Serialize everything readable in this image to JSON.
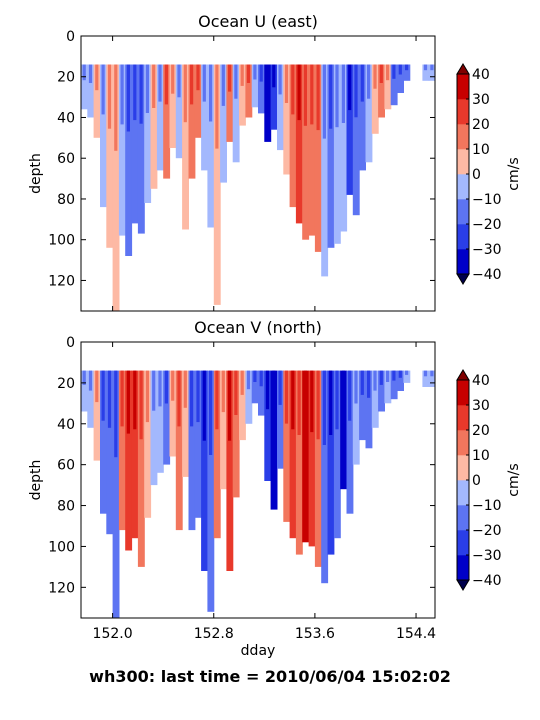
{
  "figure": {
    "suptitle": "wh300: last time = 2010/06/04 15:02:02"
  },
  "chart_data": [
    {
      "type": "heatmap",
      "title": "Ocean U (east)",
      "xlabel": "",
      "ylabel": "depth",
      "xlim": [
        151.75,
        154.55
      ],
      "ylim": [
        135,
        0
      ],
      "xticks": [
        152.0,
        152.8,
        153.6,
        154.4
      ],
      "xtick_labels": [
        "152.0",
        "152.8",
        "153.6",
        "154.4"
      ],
      "show_xtick_labels": false,
      "yticks": [
        0,
        20,
        40,
        60,
        80,
        100,
        120
      ],
      "colorbar": {
        "label": "cm/s",
        "levels": [
          -40,
          -30,
          -20,
          -10,
          0,
          10,
          20,
          30,
          40
        ],
        "tick_labels": [
          "−40",
          "−30",
          "−20",
          "−10",
          "0",
          "10",
          "20",
          "30",
          "40"
        ],
        "colors": [
          "#0000c8",
          "#2a3ee8",
          "#5d74f2",
          "#a3b8fd",
          "#fdb9a4",
          "#f2765d",
          "#e8392b",
          "#c70000"
        ],
        "extend": "both"
      },
      "grid": false,
      "data_extent": {
        "x": [
          151.75,
          154.35
        ],
        "top_depth": 14,
        "gap": [
          154.35,
          154.45
        ]
      },
      "columns": [
        {
          "x": 151.75,
          "value": -8,
          "bottom": 36
        },
        {
          "x": 151.8,
          "value": -8,
          "bottom": 40
        },
        {
          "x": 151.85,
          "value": 7,
          "bottom": 50
        },
        {
          "x": 151.9,
          "value": -7,
          "bottom": 84
        },
        {
          "x": 151.95,
          "value": 7,
          "bottom": 104
        },
        {
          "x": 152.0,
          "value": 8,
          "bottom": 135
        },
        {
          "x": 152.05,
          "value": -10,
          "bottom": 98
        },
        {
          "x": 152.1,
          "value": -18,
          "bottom": 108
        },
        {
          "x": 152.15,
          "value": -12,
          "bottom": 92
        },
        {
          "x": 152.2,
          "value": -16,
          "bottom": 97
        },
        {
          "x": 152.25,
          "value": -8,
          "bottom": 82
        },
        {
          "x": 152.3,
          "value": 6,
          "bottom": 75
        },
        {
          "x": 152.35,
          "value": -7,
          "bottom": 66
        },
        {
          "x": 152.4,
          "value": 12,
          "bottom": 70
        },
        {
          "x": 152.45,
          "value": 6,
          "bottom": 55
        },
        {
          "x": 152.5,
          "value": -9,
          "bottom": 60
        },
        {
          "x": 152.55,
          "value": 7,
          "bottom": 95
        },
        {
          "x": 152.6,
          "value": 12,
          "bottom": 70
        },
        {
          "x": 152.65,
          "value": 15,
          "bottom": 50
        },
        {
          "x": 152.7,
          "value": -8,
          "bottom": 66
        },
        {
          "x": 152.75,
          "value": -9,
          "bottom": 94
        },
        {
          "x": 152.8,
          "value": 7,
          "bottom": 132
        },
        {
          "x": 152.85,
          "value": -8,
          "bottom": 72
        },
        {
          "x": 152.9,
          "value": 16,
          "bottom": 52
        },
        {
          "x": 152.95,
          "value": -7,
          "bottom": 62
        },
        {
          "x": 153.0,
          "value": 7,
          "bottom": 44
        },
        {
          "x": 153.05,
          "value": 10,
          "bottom": 40
        },
        {
          "x": 153.1,
          "value": -9,
          "bottom": 35
        },
        {
          "x": 153.15,
          "value": -12,
          "bottom": 38
        },
        {
          "x": 153.2,
          "value": -35,
          "bottom": 52
        },
        {
          "x": 153.25,
          "value": -28,
          "bottom": 46
        },
        {
          "x": 153.3,
          "value": -8,
          "bottom": 56
        },
        {
          "x": 153.35,
          "value": 6,
          "bottom": 68
        },
        {
          "x": 153.4,
          "value": 12,
          "bottom": 84
        },
        {
          "x": 153.45,
          "value": 22,
          "bottom": 92
        },
        {
          "x": 153.5,
          "value": 15,
          "bottom": 100
        },
        {
          "x": 153.55,
          "value": 13,
          "bottom": 98
        },
        {
          "x": 153.6,
          "value": 16,
          "bottom": 106
        },
        {
          "x": 153.65,
          "value": -9,
          "bottom": 118
        },
        {
          "x": 153.7,
          "value": -14,
          "bottom": 104
        },
        {
          "x": 153.75,
          "value": -8,
          "bottom": 102
        },
        {
          "x": 153.8,
          "value": -10,
          "bottom": 96
        },
        {
          "x": 153.85,
          "value": -22,
          "bottom": 78
        },
        {
          "x": 153.9,
          "value": -12,
          "bottom": 88
        },
        {
          "x": 153.95,
          "value": -16,
          "bottom": 66
        },
        {
          "x": 154.0,
          "value": -9,
          "bottom": 62
        },
        {
          "x": 154.05,
          "value": 7,
          "bottom": 48
        },
        {
          "x": 154.1,
          "value": 12,
          "bottom": 40
        },
        {
          "x": 154.15,
          "value": 8,
          "bottom": 36
        },
        {
          "x": 154.2,
          "value": -12,
          "bottom": 34
        },
        {
          "x": 154.25,
          "value": -14,
          "bottom": 28
        },
        {
          "x": 154.3,
          "value": -18,
          "bottom": 22
        },
        {
          "x": 154.45,
          "value": -8,
          "bottom": 22
        },
        {
          "x": 154.5,
          "value": -8,
          "bottom": 22
        }
      ]
    },
    {
      "type": "heatmap",
      "title": "Ocean V (north)",
      "xlabel": "dday",
      "ylabel": "depth",
      "xlim": [
        151.75,
        154.55
      ],
      "ylim": [
        135,
        0
      ],
      "xticks": [
        152.0,
        152.8,
        153.6,
        154.4
      ],
      "xtick_labels": [
        "152.0",
        "152.8",
        "153.6",
        "154.4"
      ],
      "show_xtick_labels": true,
      "yticks": [
        0,
        20,
        40,
        60,
        80,
        100,
        120
      ],
      "colorbar": {
        "label": "cm/s",
        "levels": [
          -40,
          -30,
          -20,
          -10,
          0,
          10,
          20,
          30,
          40
        ],
        "tick_labels": [
          "−40",
          "−30",
          "−20",
          "−10",
          "0",
          "10",
          "20",
          "30",
          "40"
        ],
        "colors": [
          "#0000c8",
          "#2a3ee8",
          "#5d74f2",
          "#a3b8fd",
          "#fdb9a4",
          "#f2765d",
          "#e8392b",
          "#c70000"
        ],
        "extend": "both"
      },
      "grid": false,
      "data_extent": {
        "x": [
          151.75,
          154.35
        ],
        "top_depth": 14,
        "gap": [
          154.35,
          154.45
        ]
      },
      "columns": [
        {
          "x": 151.75,
          "value": -8,
          "bottom": 34
        },
        {
          "x": 151.8,
          "value": -9,
          "bottom": 42
        },
        {
          "x": 151.85,
          "value": 6,
          "bottom": 58
        },
        {
          "x": 151.9,
          "value": -14,
          "bottom": 84
        },
        {
          "x": 151.95,
          "value": -18,
          "bottom": 94
        },
        {
          "x": 152.0,
          "value": -12,
          "bottom": 135
        },
        {
          "x": 152.05,
          "value": 12,
          "bottom": 92
        },
        {
          "x": 152.1,
          "value": 22,
          "bottom": 102
        },
        {
          "x": 152.15,
          "value": 28,
          "bottom": 96
        },
        {
          "x": 152.2,
          "value": 14,
          "bottom": 110
        },
        {
          "x": 152.25,
          "value": 8,
          "bottom": 86
        },
        {
          "x": 152.3,
          "value": -8,
          "bottom": 70
        },
        {
          "x": 152.35,
          "value": -6,
          "bottom": 64
        },
        {
          "x": 152.4,
          "value": -12,
          "bottom": 60
        },
        {
          "x": 152.45,
          "value": 8,
          "bottom": 56
        },
        {
          "x": 152.5,
          "value": 12,
          "bottom": 92
        },
        {
          "x": 152.55,
          "value": 8,
          "bottom": 66
        },
        {
          "x": 152.6,
          "value": -16,
          "bottom": 92
        },
        {
          "x": 152.65,
          "value": -12,
          "bottom": 86
        },
        {
          "x": 152.7,
          "value": -28,
          "bottom": 112
        },
        {
          "x": 152.75,
          "value": -12,
          "bottom": 132
        },
        {
          "x": 152.8,
          "value": 14,
          "bottom": 96
        },
        {
          "x": 152.85,
          "value": 9,
          "bottom": 72
        },
        {
          "x": 152.9,
          "value": 22,
          "bottom": 112
        },
        {
          "x": 152.95,
          "value": 12,
          "bottom": 76
        },
        {
          "x": 153.0,
          "value": 8,
          "bottom": 48
        },
        {
          "x": 153.05,
          "value": -8,
          "bottom": 40
        },
        {
          "x": 153.1,
          "value": -14,
          "bottom": 30
        },
        {
          "x": 153.15,
          "value": -20,
          "bottom": 36
        },
        {
          "x": 153.2,
          "value": -28,
          "bottom": 68
        },
        {
          "x": 153.25,
          "value": -36,
          "bottom": 82
        },
        {
          "x": 153.3,
          "value": -14,
          "bottom": 62
        },
        {
          "x": 153.35,
          "value": 18,
          "bottom": 88
        },
        {
          "x": 153.4,
          "value": 26,
          "bottom": 96
        },
        {
          "x": 153.45,
          "value": 14,
          "bottom": 104
        },
        {
          "x": 153.5,
          "value": 32,
          "bottom": 98
        },
        {
          "x": 153.55,
          "value": 22,
          "bottom": 100
        },
        {
          "x": 153.6,
          "value": 12,
          "bottom": 110
        },
        {
          "x": 153.65,
          "value": -12,
          "bottom": 118
        },
        {
          "x": 153.7,
          "value": -22,
          "bottom": 104
        },
        {
          "x": 153.75,
          "value": -16,
          "bottom": 96
        },
        {
          "x": 153.8,
          "value": -34,
          "bottom": 72
        },
        {
          "x": 153.85,
          "value": -12,
          "bottom": 84
        },
        {
          "x": 153.9,
          "value": -8,
          "bottom": 60
        },
        {
          "x": 153.95,
          "value": -12,
          "bottom": 48
        },
        {
          "x": 154.0,
          "value": -18,
          "bottom": 52
        },
        {
          "x": 154.05,
          "value": -9,
          "bottom": 42
        },
        {
          "x": 154.1,
          "value": -14,
          "bottom": 34
        },
        {
          "x": 154.15,
          "value": -8,
          "bottom": 30
        },
        {
          "x": 154.2,
          "value": -12,
          "bottom": 28
        },
        {
          "x": 154.25,
          "value": -16,
          "bottom": 24
        },
        {
          "x": 154.3,
          "value": -8,
          "bottom": 20
        },
        {
          "x": 154.45,
          "value": -8,
          "bottom": 22
        },
        {
          "x": 154.5,
          "value": -8,
          "bottom": 22
        }
      ]
    }
  ]
}
